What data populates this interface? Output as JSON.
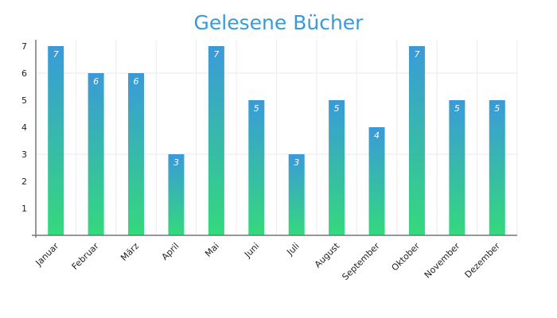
{
  "chart_data": {
    "type": "bar",
    "title": "Gelesene Bücher",
    "xlabel": "",
    "ylabel": "",
    "categories": [
      "Januar",
      "Februar",
      "März",
      "April",
      "Mai",
      "Juni",
      "Juli",
      "August",
      "September",
      "Oktober",
      "November",
      "Dezember"
    ],
    "values": [
      7,
      6,
      6,
      3,
      7,
      5,
      3,
      5,
      4,
      7,
      5,
      5
    ],
    "ylim": [
      0,
      7
    ],
    "yticks": [
      1,
      2,
      3,
      4,
      5,
      6,
      7
    ],
    "grid": true,
    "data_labels": true,
    "colors": {
      "gradient_top": "#3a9ad9",
      "gradient_bottom": "#34d97c",
      "title": "#3a9ad9"
    }
  }
}
